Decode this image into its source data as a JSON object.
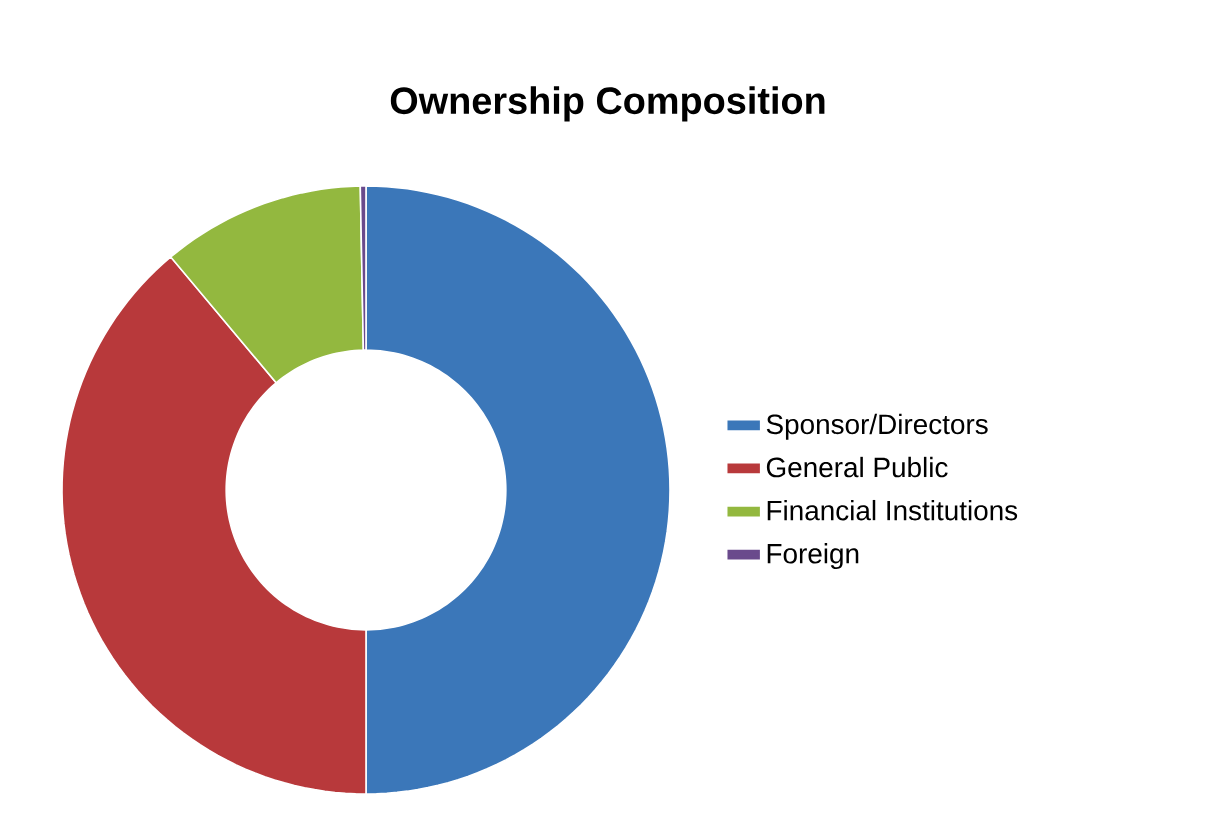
{
  "chart_data": {
    "type": "donut",
    "title": "Ownership Composition",
    "categories": [
      "Sponsor/Directors",
      "General Public",
      "Financial Institutions",
      "Foreign"
    ],
    "values": [
      50,
      38.9,
      10.8,
      0.3
    ],
    "colors": [
      "#3b77b9",
      "#b8393b",
      "#93b83f",
      "#6a4a8c"
    ],
    "legend": "right"
  }
}
